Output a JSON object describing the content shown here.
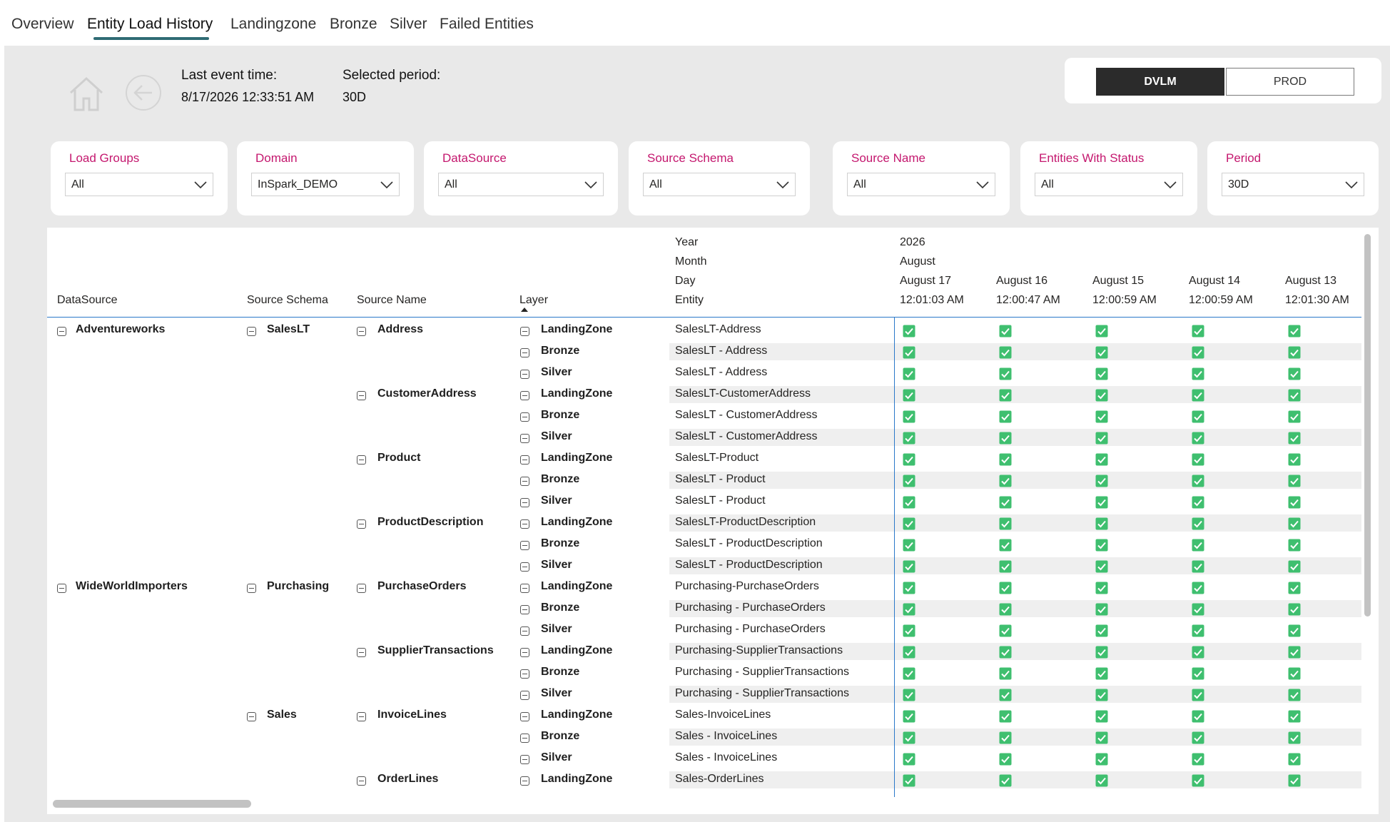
{
  "tabs": [
    {
      "label": "Overview",
      "active": false
    },
    {
      "label": "Entity Load History",
      "active": true
    },
    {
      "label": "Landingzone",
      "active": false
    },
    {
      "label": "Bronze",
      "active": false
    },
    {
      "label": "Silver",
      "active": false
    },
    {
      "label": "Failed Entities",
      "active": false
    }
  ],
  "info": {
    "last_event_label": "Last event time:",
    "last_event_value": "8/17/2026 12:33:51 AM",
    "period_label": "Selected period:",
    "period_value": "30D"
  },
  "environment": {
    "active": "DVLM",
    "inactive": "PROD"
  },
  "filters": [
    {
      "label": "Load Groups",
      "value": "All"
    },
    {
      "label": "Domain",
      "value": "InSpark_DEMO"
    },
    {
      "label": "DataSource",
      "value": "All"
    },
    {
      "label": "Source Schema",
      "value": "All"
    },
    {
      "label": "Source Name",
      "value": "All"
    },
    {
      "label": "Entities With Status",
      "value": "All"
    },
    {
      "label": "Period",
      "value": "30D"
    }
  ],
  "table": {
    "headers": {
      "datasource": "DataSource",
      "schema": "Source Schema",
      "name": "Source Name",
      "layer": "Layer",
      "year": "Year",
      "month": "Month",
      "day": "Day",
      "entity": "Entity",
      "year_value": "2026",
      "month_value": "August"
    },
    "date_columns": [
      {
        "day": "August 17",
        "time": "12:01:03 AM"
      },
      {
        "day": "August 16",
        "time": "12:00:47 AM"
      },
      {
        "day": "August 15",
        "time": "12:00:59 AM"
      },
      {
        "day": "August 14",
        "time": "12:00:59 AM"
      },
      {
        "day": "August 13",
        "time": "12:01:30 AM"
      }
    ],
    "check_status": "success",
    "rows": [
      {
        "datasource": "Adventureworks",
        "schema": "SalesLT",
        "name": "Address",
        "layer": "LandingZone",
        "entity": "SalesLT-Address"
      },
      {
        "datasource": "",
        "schema": "",
        "name": "",
        "layer": "Bronze",
        "entity": "SalesLT - Address"
      },
      {
        "datasource": "",
        "schema": "",
        "name": "",
        "layer": "Silver",
        "entity": "SalesLT - Address"
      },
      {
        "datasource": "",
        "schema": "",
        "name": "CustomerAddress",
        "layer": "LandingZone",
        "entity": "SalesLT-CustomerAddress"
      },
      {
        "datasource": "",
        "schema": "",
        "name": "",
        "layer": "Bronze",
        "entity": "SalesLT - CustomerAddress"
      },
      {
        "datasource": "",
        "schema": "",
        "name": "",
        "layer": "Silver",
        "entity": "SalesLT - CustomerAddress"
      },
      {
        "datasource": "",
        "schema": "",
        "name": "Product",
        "layer": "LandingZone",
        "entity": "SalesLT-Product"
      },
      {
        "datasource": "",
        "schema": "",
        "name": "",
        "layer": "Bronze",
        "entity": "SalesLT - Product"
      },
      {
        "datasource": "",
        "schema": "",
        "name": "",
        "layer": "Silver",
        "entity": "SalesLT - Product"
      },
      {
        "datasource": "",
        "schema": "",
        "name": "ProductDescription",
        "layer": "LandingZone",
        "entity": "SalesLT-ProductDescription"
      },
      {
        "datasource": "",
        "schema": "",
        "name": "",
        "layer": "Bronze",
        "entity": "SalesLT - ProductDescription"
      },
      {
        "datasource": "",
        "schema": "",
        "name": "",
        "layer": "Silver",
        "entity": "SalesLT - ProductDescription"
      },
      {
        "datasource": "WideWorldImporters",
        "schema": "Purchasing",
        "name": "PurchaseOrders",
        "layer": "LandingZone",
        "entity": "Purchasing-PurchaseOrders"
      },
      {
        "datasource": "",
        "schema": "",
        "name": "",
        "layer": "Bronze",
        "entity": "Purchasing - PurchaseOrders"
      },
      {
        "datasource": "",
        "schema": "",
        "name": "",
        "layer": "Silver",
        "entity": "Purchasing - PurchaseOrders"
      },
      {
        "datasource": "",
        "schema": "",
        "name": "SupplierTransactions",
        "layer": "LandingZone",
        "entity": "Purchasing-SupplierTransactions"
      },
      {
        "datasource": "",
        "schema": "",
        "name": "",
        "layer": "Bronze",
        "entity": "Purchasing - SupplierTransactions"
      },
      {
        "datasource": "",
        "schema": "",
        "name": "",
        "layer": "Silver",
        "entity": "Purchasing - SupplierTransactions"
      },
      {
        "datasource": "",
        "schema": "Sales",
        "name": "InvoiceLines",
        "layer": "LandingZone",
        "entity": "Sales-InvoiceLines"
      },
      {
        "datasource": "",
        "schema": "",
        "name": "",
        "layer": "Bronze",
        "entity": "Sales - InvoiceLines"
      },
      {
        "datasource": "",
        "schema": "",
        "name": "",
        "layer": "Silver",
        "entity": "Sales - InvoiceLines"
      },
      {
        "datasource": "",
        "schema": "",
        "name": "OrderLines",
        "layer": "LandingZone",
        "entity": "Sales-OrderLines"
      }
    ]
  },
  "colors": {
    "accent_label": "#c4176e",
    "check_green": "#3fbf6f",
    "header_line": "#2a78c9",
    "tab_underline": "#2f6b74"
  }
}
